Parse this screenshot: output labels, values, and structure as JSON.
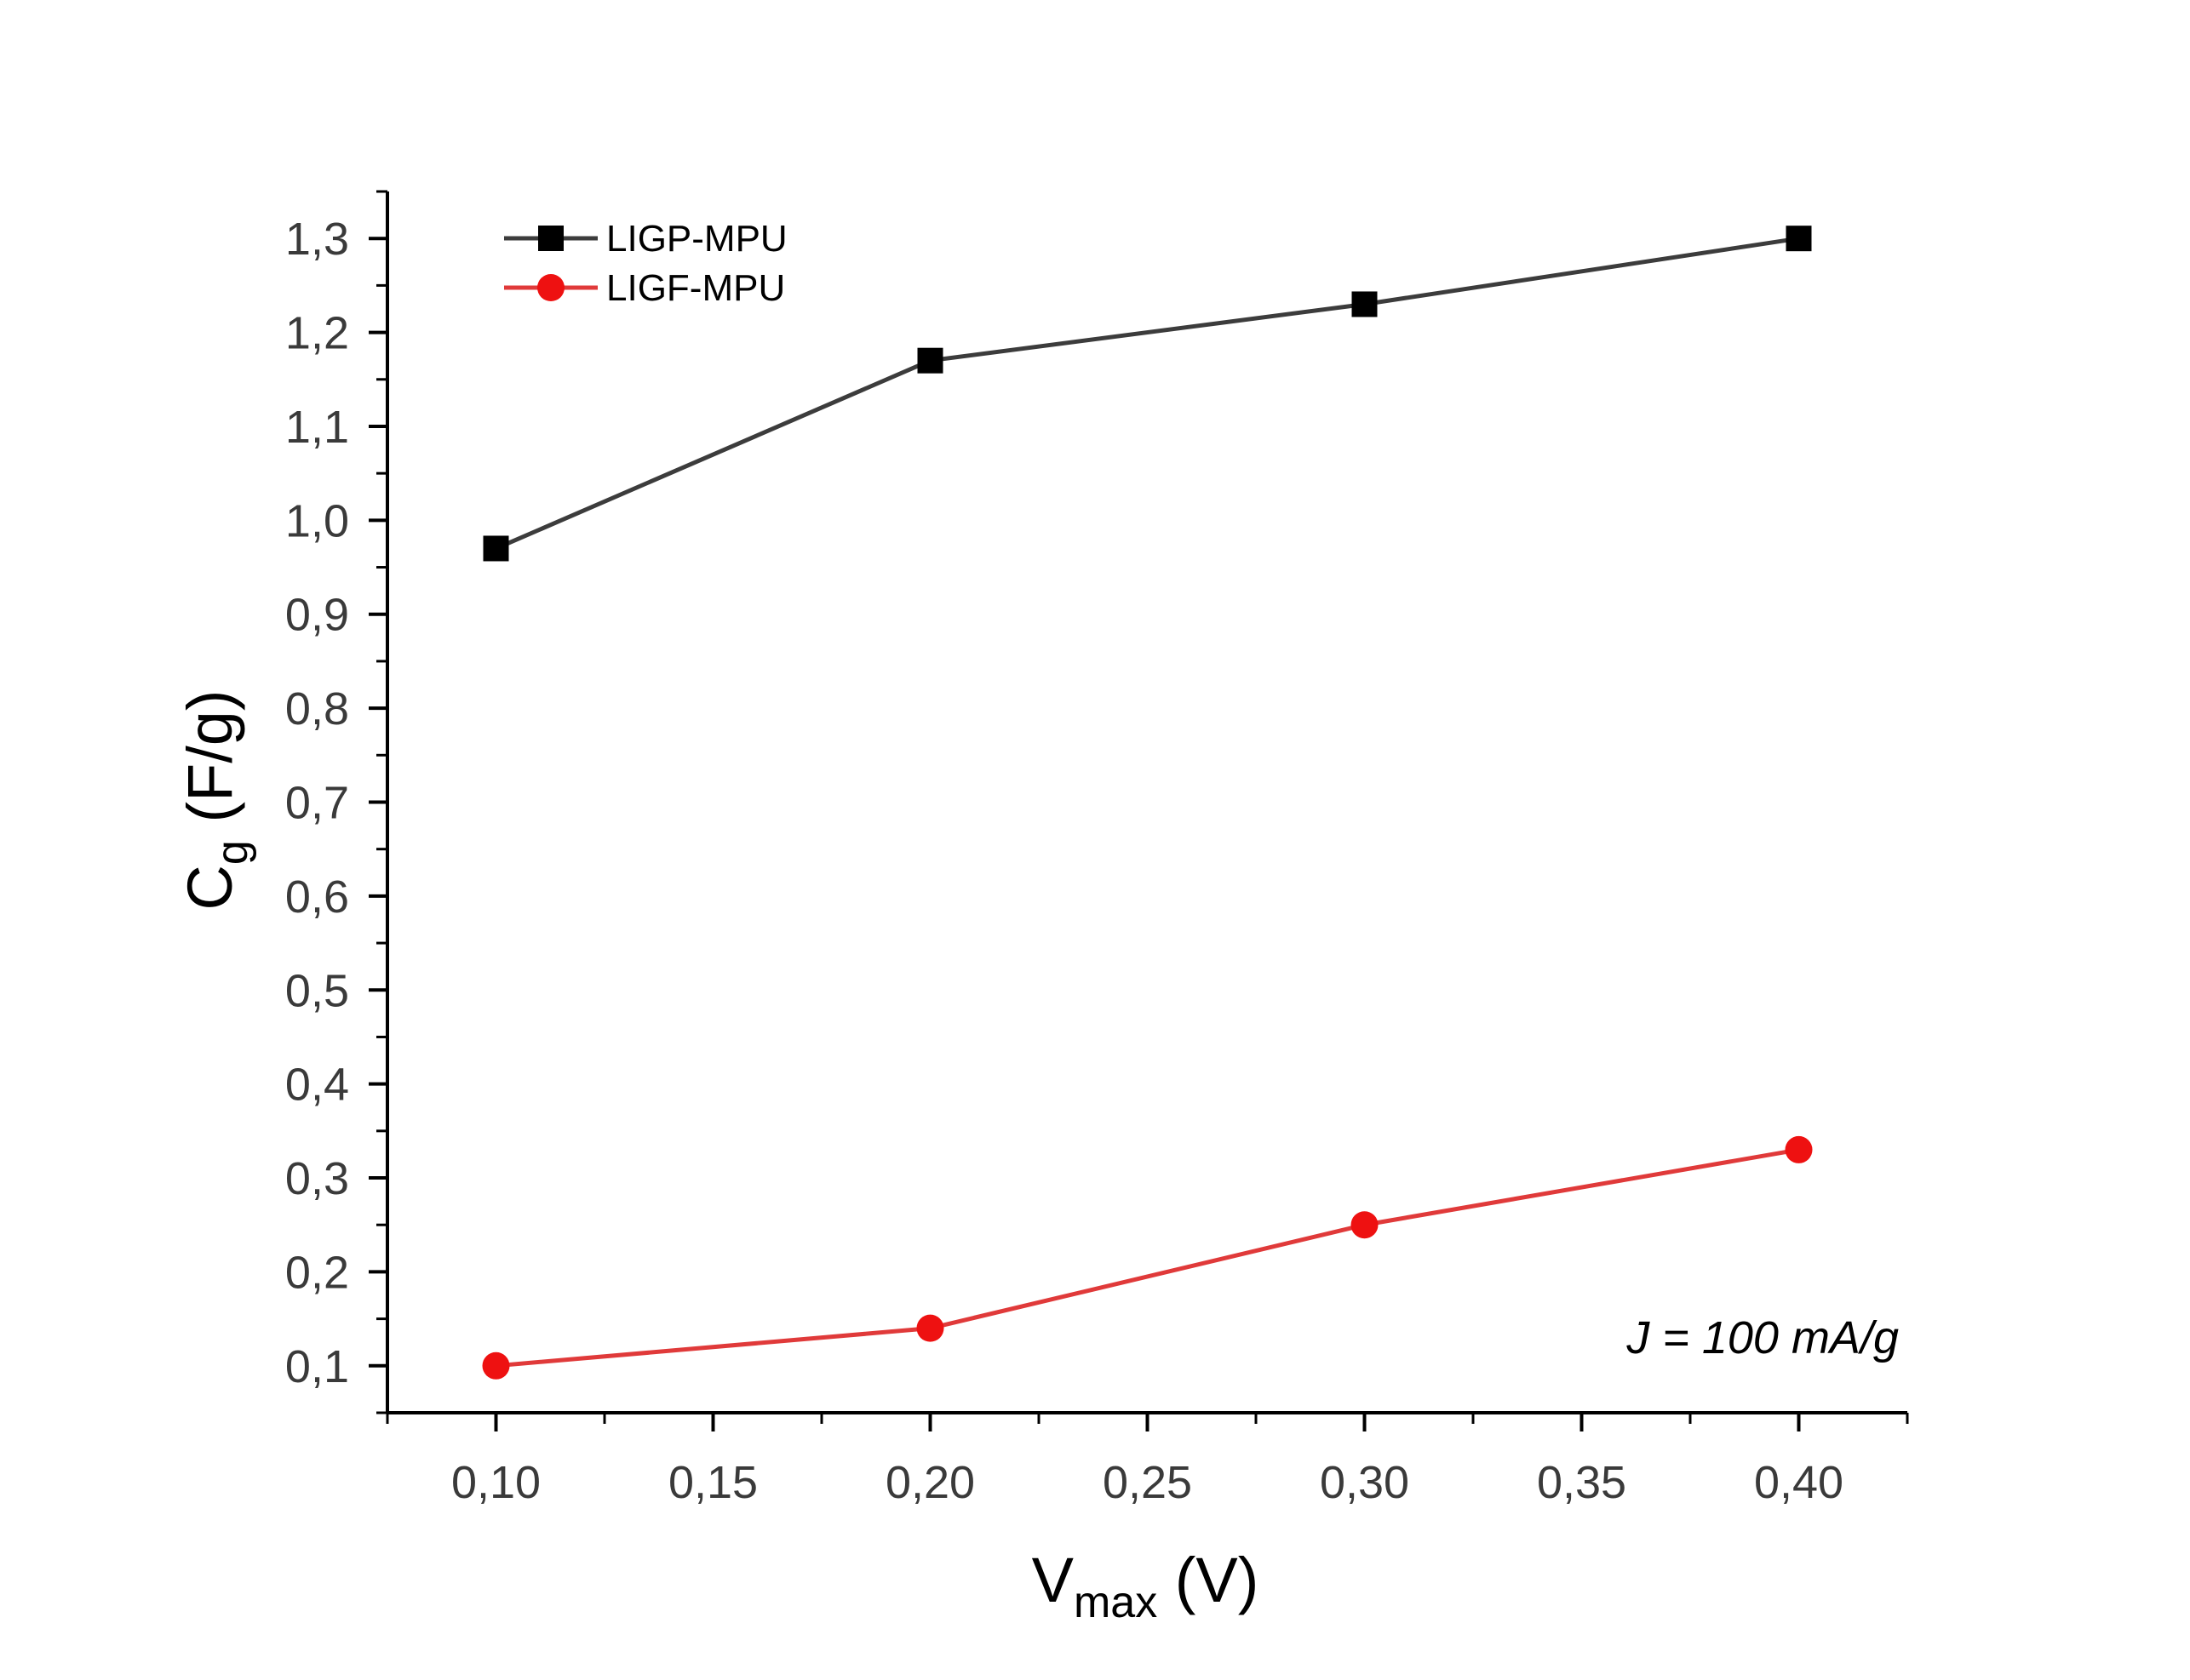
{
  "chart_data": {
    "type": "line",
    "x": [
      0.1,
      0.2,
      0.3,
      0.4
    ],
    "series": [
      {
        "name": "LIGP-MPU",
        "values": [
          0.97,
          1.17,
          1.23,
          1.3
        ],
        "color": "#3c3c3c",
        "marker": "square",
        "marker_color": "#000000"
      },
      {
        "name": "LIGF-MPU",
        "values": [
          0.1,
          0.14,
          0.25,
          0.33
        ],
        "color": "#e03a3a",
        "marker": "circle",
        "marker_color": "#ee1111"
      }
    ],
    "xlabel": {
      "main": "V",
      "sub": "max",
      "unit": " (V)"
    },
    "ylabel": {
      "main": "C",
      "sub": "g",
      "unit": " (F/g)"
    },
    "x_ticks": [
      {
        "value": 0.1,
        "label": "0,10"
      },
      {
        "value": 0.15,
        "label": "0,15"
      },
      {
        "value": 0.2,
        "label": "0,20"
      },
      {
        "value": 0.25,
        "label": "0,25"
      },
      {
        "value": 0.3,
        "label": "0,30"
      },
      {
        "value": 0.35,
        "label": "0,35"
      },
      {
        "value": 0.4,
        "label": "0,40"
      }
    ],
    "y_ticks": [
      {
        "value": 0.1,
        "label": "0,1"
      },
      {
        "value": 0.2,
        "label": "0,2"
      },
      {
        "value": 0.3,
        "label": "0,3"
      },
      {
        "value": 0.4,
        "label": "0,4"
      },
      {
        "value": 0.5,
        "label": "0,5"
      },
      {
        "value": 0.6,
        "label": "0,6"
      },
      {
        "value": 0.7,
        "label": "0,7"
      },
      {
        "value": 0.8,
        "label": "0,8"
      },
      {
        "value": 0.9,
        "label": "0,9"
      },
      {
        "value": 1.0,
        "label": "1,0"
      },
      {
        "value": 1.1,
        "label": "1,1"
      },
      {
        "value": 1.2,
        "label": "1,2"
      },
      {
        "value": 1.3,
        "label": "1,3"
      }
    ],
    "xlim": [
      0.075,
      0.425
    ],
    "ylim": [
      0.05,
      1.35
    ],
    "annotation": "J = 100 mA/g",
    "legend_position": "top-left",
    "grid": false
  }
}
